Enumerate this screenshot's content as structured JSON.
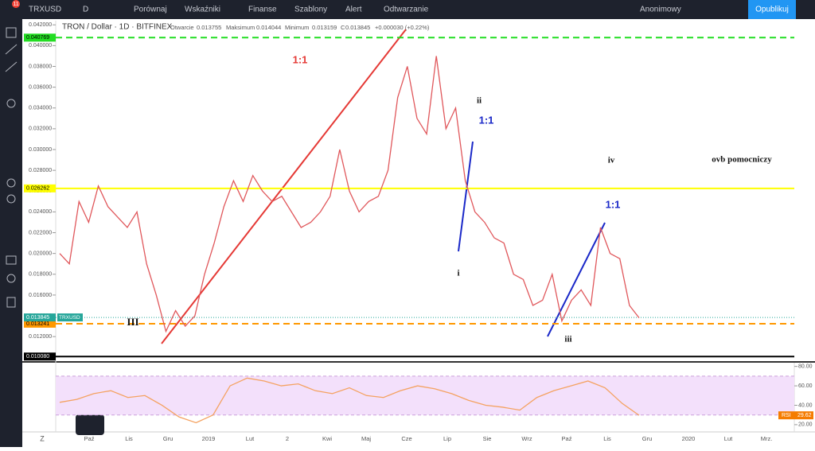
{
  "toolbar": {
    "badge": "11",
    "symbol": "TRXUSD",
    "interval": "D",
    "items": [
      "Porównaj",
      "Wskaźniki",
      "Finanse",
      "Szablony",
      "Alert",
      "Odtwarzanie"
    ],
    "user": "Anonimowy",
    "publish": "Opublikuj"
  },
  "legend": {
    "title": "TRON / Dollar · 1D · BITFINEX",
    "open_label": "Otwarcie",
    "open": "0.013755",
    "high_label": "Maksimum",
    "high": "0.014044",
    "low_label": "Minimum",
    "low": "0.013159",
    "close_label": "C",
    "close": "0.013845",
    "change": "+0.000030 (+0.22%)"
  },
  "chart_data": [
    {
      "type": "line",
      "color": "#e0575b",
      "ylim": [
        0.0101,
        0.0424
      ],
      "values": [
        0.02,
        0.019,
        0.025,
        0.023,
        0.0265,
        0.0245,
        0.0235,
        0.0225,
        0.024,
        0.019,
        0.016,
        0.0125,
        0.0145,
        0.013,
        0.014,
        0.018,
        0.021,
        0.0245,
        0.027,
        0.025,
        0.0275,
        0.026,
        0.025,
        0.0255,
        0.024,
        0.0225,
        0.023,
        0.024,
        0.0255,
        0.03,
        0.026,
        0.024,
        0.025,
        0.0255,
        0.028,
        0.035,
        0.038,
        0.033,
        0.0315,
        0.039,
        0.032,
        0.034,
        0.027,
        0.024,
        0.023,
        0.0215,
        0.021,
        0.018,
        0.0175,
        0.015,
        0.0155,
        0.018,
        0.0135,
        0.0155,
        0.0165,
        0.015,
        0.0225,
        0.02,
        0.0195,
        0.015,
        0.0138
      ],
      "yticks": [
        {
          "value": 0.042,
          "label": "0.042000"
        },
        {
          "value": 0.04,
          "label": "0.040000"
        },
        {
          "value": 0.038,
          "label": "0.038000"
        },
        {
          "value": 0.036,
          "label": "0.036000"
        },
        {
          "value": 0.034,
          "label": "0.034000"
        },
        {
          "value": 0.032,
          "label": "0.032000"
        },
        {
          "value": 0.03,
          "label": "0.030000"
        },
        {
          "value": 0.028,
          "label": "0.028000"
        },
        {
          "value": 0.026,
          "label": "0.026000"
        },
        {
          "value": 0.024,
          "label": "0.024000"
        },
        {
          "value": 0.022,
          "label": "0.022000"
        },
        {
          "value": 0.02,
          "label": "0.020000"
        },
        {
          "value": 0.018,
          "label": "0.018000"
        },
        {
          "value": 0.016,
          "label": "0.016000"
        },
        {
          "value": 0.014,
          "label": "0.014000"
        },
        {
          "value": 0.012,
          "label": "0.012000"
        }
      ],
      "levels": [
        {
          "value": 0.040769,
          "color": "#22dd22",
          "dash": true
        },
        {
          "value": 0.026262,
          "color": "#ffff00",
          "dash": false
        },
        {
          "value": 0.013241,
          "color": "#ff9800",
          "dash": true
        }
      ],
      "last_price": {
        "value": 0.013845,
        "symbol": "TRXUSD"
      },
      "bottom_mark": {
        "value": 0.01008,
        "label": "0.010080"
      }
    },
    {
      "type": "line",
      "name": "RSI",
      "color": "#f4a261",
      "ylim": [
        15,
        83
      ],
      "band": [
        30,
        70
      ],
      "values": [
        43,
        46,
        52,
        55,
        48,
        50,
        40,
        28,
        22,
        30,
        60,
        68,
        65,
        60,
        62,
        55,
        52,
        58,
        50,
        48,
        55,
        60,
        57,
        52,
        45,
        40,
        38,
        35,
        48,
        55,
        60,
        65,
        58,
        42,
        29.62
      ],
      "yticks": [
        {
          "value": 80,
          "label": "80.00"
        },
        {
          "value": 60,
          "label": "60.00"
        },
        {
          "value": 40,
          "label": "40.00"
        },
        {
          "value": 20,
          "label": "20.00"
        }
      ]
    }
  ],
  "time_labels": [
    "Paź",
    "Lis",
    "Gru",
    "2019",
    "Lut",
    "2",
    "Kwi",
    "Maj",
    "Cze",
    "Lip",
    "Sie",
    "Wrz",
    "Paź",
    "Lis",
    "Gru",
    "2020",
    "Lut",
    "Mrz."
  ],
  "annotations": [
    {
      "text": "1:1",
      "color": "#e53935"
    },
    {
      "text": "1:1",
      "color": "#1a28c8"
    },
    {
      "text": "1:1",
      "color": "#1a28c8"
    },
    {
      "text": "ii",
      "color": "#111"
    },
    {
      "text": "i",
      "color": "#111"
    },
    {
      "text": "iii",
      "color": "#111"
    },
    {
      "text": "III",
      "color": "#111"
    },
    {
      "text": "iv",
      "color": "#111"
    },
    {
      "text": "ovb pomocniczy",
      "color": "#111"
    }
  ]
}
